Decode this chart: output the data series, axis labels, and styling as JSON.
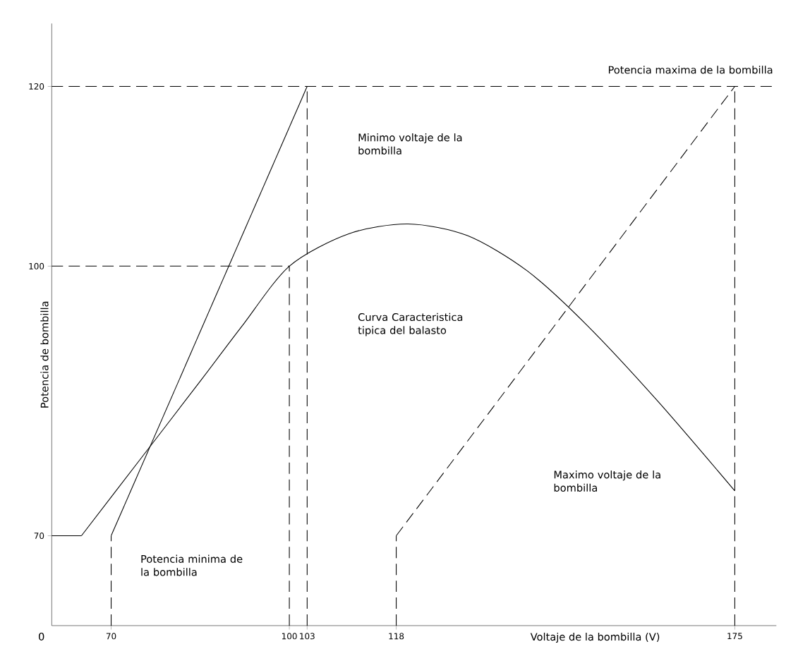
{
  "chart_data": {
    "type": "line",
    "xlabel": "Voltaje de la bombilla (V)",
    "ylabel": "Potencia de bombilla",
    "xlim": [
      60,
      182
    ],
    "ylim": [
      60,
      127
    ],
    "xticks": [
      70,
      100,
      103,
      118,
      175
    ],
    "yticks": [
      70,
      100,
      120
    ],
    "series": [
      {
        "color": "#000000",
        "line_style": "solid",
        "x": [
          65,
          75,
          85,
          92,
          100,
          110,
          120,
          130,
          140,
          150,
          162,
          175
        ],
        "values": [
          70,
          78.6,
          87.2,
          93.3,
          100,
          103.6,
          104.7,
          103.4,
          99.5,
          93.5,
          85,
          75
        ]
      },
      {
        "color": "#000000",
        "line_style": "solid",
        "x": [
          70,
          103
        ],
        "values": [
          70,
          120
        ]
      },
      {
        "color": "#000000",
        "line_style": "dashed",
        "x": [
          118,
          175
        ],
        "values": [
          70,
          120
        ]
      },
      {
        "color": "#000000",
        "line_style": "solid",
        "x": [
          60,
          65
        ],
        "values": [
          70,
          70
        ]
      },
      {
        "color": "#000000",
        "line_style": "dashed",
        "x": [
          70,
          70
        ],
        "values": [
          60,
          70
        ]
      },
      {
        "color": "#000000",
        "line_style": "dashed",
        "x": [
          100,
          100
        ],
        "values": [
          60,
          100
        ]
      },
      {
        "color": "#000000",
        "line_style": "dashed",
        "x": [
          60,
          100
        ],
        "values": [
          100,
          100
        ]
      },
      {
        "color": "#000000",
        "line_style": "dashed",
        "x": [
          103,
          103
        ],
        "values": [
          60,
          120
        ]
      },
      {
        "color": "#000000",
        "line_style": "dashed",
        "x": [
          118,
          118
        ],
        "values": [
          60,
          70
        ]
      },
      {
        "color": "#000000",
        "line_style": "dashed",
        "x": [
          175,
          175
        ],
        "values": [
          60,
          120
        ]
      }
    ],
    "ref_lines": [
      {
        "axis": "y",
        "value": 120,
        "label": "Potencia maxima de la bombilla",
        "color": "#000000",
        "line_style": "dashed"
      }
    ],
    "annotations": [
      "0",
      "Minimo voltaje de la bombilla",
      "Curva Caracteristica tipica del balasto",
      "Maximo voltaje de la bombilla",
      "Potencia minima de la bombilla"
    ]
  }
}
